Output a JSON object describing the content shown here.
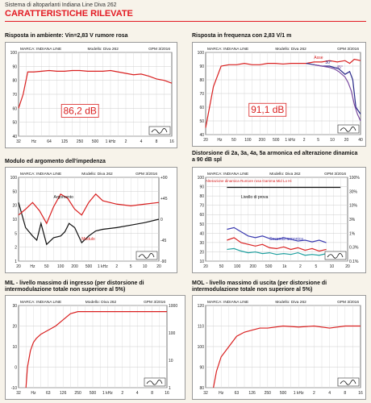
{
  "header": {
    "subtitle": "Sistema di altoparlanti Indiana Line Diva 262",
    "title": "CARATTERISTICHE RILEVATE"
  },
  "sections": {
    "ambient": {
      "title": "Risposta in ambiente: Vin=2,83 V rumore rosa"
    },
    "freq": {
      "title": "Risposta in frequenza con 2,83 V/1 m"
    },
    "impedance": {
      "title": "Modulo ed argomento dell'impedenza"
    },
    "distortion": {
      "title": "Distorsione di 2a, 3a, 4a, 5a armonica ed alterazione dinamica a 90 dB spl"
    },
    "mil": {
      "title": "MIL - livello massimo di ingresso (per distorsione di intermodulazione totale non superiore al 5%)"
    },
    "mol": {
      "title": "MOL - livello massimo di uscita (per distorsione di intermodulazione totale non superiore al 5%)"
    }
  },
  "chart_data": [
    {
      "id": "ambient",
      "type": "line",
      "header_left": "MARCA: INDIANA LINE",
      "header_mid": "Modello: Diva 262",
      "header_right": "GPM 3/2016",
      "annotation": "86,2 dB",
      "ylim": [
        40,
        100
      ],
      "yticks": [
        "100",
        "90",
        "80",
        "70",
        "60",
        "50",
        "40"
      ],
      "xticks": [
        "32",
        "Hz",
        "64",
        "125",
        "250",
        "500",
        "1 kHz",
        "2",
        "4",
        "8",
        "16"
      ],
      "series": [
        {
          "color": "#d92020",
          "x": [
            0,
            0.3,
            0.6,
            1,
            1.5,
            2,
            2.5,
            3,
            3.5,
            4,
            4.5,
            5,
            5.5,
            6,
            6.5,
            7,
            7.5,
            8,
            8.5,
            9,
            9.5,
            10
          ],
          "y": [
            60,
            70,
            86,
            86,
            86.5,
            87,
            86.5,
            86.5,
            87,
            87,
            86.5,
            86.5,
            86.5,
            87,
            86,
            85,
            84,
            84.5,
            83,
            81,
            80,
            78
          ]
        }
      ]
    },
    {
      "id": "freq",
      "type": "line",
      "header_left": "MARCA: INDIANA LINE",
      "header_mid": "Modello: Diva 262",
      "header_right": "GPM 3/2016",
      "annotation": "91,1 dB",
      "legend": [
        "Asse",
        "30°",
        "45°"
      ],
      "ylim": [
        40,
        100
      ],
      "yticks": [
        "100",
        "90",
        "80",
        "70",
        "60",
        "50",
        "40"
      ],
      "xticks": [
        "20",
        "Hz",
        "50",
        "100",
        "200",
        "500",
        "1 kHz",
        "2",
        "5",
        "10",
        "20",
        "40"
      ],
      "series": [
        {
          "color": "#d92020",
          "x": [
            0,
            0.5,
            1,
            1.5,
            2,
            2.5,
            3,
            3.5,
            4,
            4.5,
            5,
            5.5,
            6,
            6.5,
            7,
            7.5,
            8,
            8.5,
            9,
            9.3,
            9.6,
            10
          ],
          "y": [
            45,
            75,
            90,
            91,
            91,
            92,
            91,
            91,
            92,
            92,
            91.5,
            92,
            92,
            92,
            93,
            93,
            94,
            93,
            94,
            92,
            95,
            94
          ]
        },
        {
          "color": "#2a2a8a",
          "x": [
            6.5,
            7,
            7.5,
            8,
            8.3,
            8.6,
            9,
            9.3,
            9.5,
            9.7,
            10
          ],
          "y": [
            92,
            91,
            90,
            90,
            89,
            88,
            84,
            86,
            80,
            60,
            55
          ]
        },
        {
          "color": "#7a4aa0",
          "x": [
            7,
            7.5,
            8,
            8.3,
            8.6,
            9,
            9.2,
            9.4,
            9.6,
            9.8,
            10
          ],
          "y": [
            91,
            90,
            89,
            88,
            86,
            82,
            78,
            72,
            62,
            55,
            50
          ]
        }
      ]
    },
    {
      "id": "impedance",
      "type": "line",
      "header_left": "MARCA: INDIANA LINE",
      "header_mid": "Modello: Diva 262",
      "header_right": "GPM 3/2016",
      "labels": [
        "Argomento",
        "Modulo"
      ],
      "ylim": [
        0,
        100
      ],
      "yticks": [
        "100",
        "50",
        "20",
        "10",
        "5",
        "2",
        "1"
      ],
      "yticks_right": [
        "+90",
        "+45",
        "0",
        "-45",
        "-90"
      ],
      "xticks": [
        "20",
        "Hz",
        "50",
        "100",
        "200",
        "500",
        "1 kHz",
        "2",
        "5",
        "10",
        "20"
      ],
      "series": [
        {
          "color": "#111111",
          "x": [
            0,
            0.5,
            1,
            1.3,
            1.6,
            2,
            2.5,
            3,
            3.3,
            3.6,
            4,
            4.5,
            5,
            5.5,
            6,
            7,
            8,
            9,
            10
          ],
          "y": [
            70,
            40,
            30,
            25,
            45,
            20,
            28,
            30,
            35,
            45,
            40,
            22,
            30,
            36,
            38,
            40,
            43,
            46,
            50
          ]
        },
        {
          "color": "#d92020",
          "x": [
            0,
            0.5,
            1,
            1.5,
            2,
            2.5,
            3,
            3.5,
            4,
            4.5,
            5,
            5.5,
            6,
            7,
            8,
            9,
            10
          ],
          "y": [
            55,
            62,
            70,
            60,
            45,
            65,
            80,
            75,
            62,
            55,
            70,
            80,
            72,
            68,
            66,
            68,
            70
          ]
        }
      ]
    },
    {
      "id": "distortion",
      "type": "line",
      "header_left": "MARCA: INDIANA LINE",
      "header_mid": "Modello: Diva 262",
      "header_right": "GPM 3/2016",
      "top_legend": "Alterazione dinamica   Rumore rosa  Gamma Mid Lo Hi",
      "labels": [
        "Livello di prova",
        "Seconda armonica",
        "Terza armonica"
      ],
      "ylim": [
        0,
        100
      ],
      "yticks": [
        "100",
        "90",
        "80",
        "70",
        "60",
        "50",
        "40",
        "30",
        "20",
        "10"
      ],
      "yticks_right": [
        "100%",
        "30%",
        "10%",
        "3%",
        "1%",
        "0.3%",
        "0.1%"
      ],
      "xticks": [
        "20",
        "50",
        "100",
        "200",
        "500",
        "1k",
        "2",
        "5",
        "10",
        "20"
      ],
      "series": [
        {
          "color": "#111111",
          "x": [
            1.5,
            2,
            3,
            4,
            5,
            6,
            7,
            8,
            9,
            9.5
          ],
          "y": [
            88,
            88,
            88,
            88,
            88,
            88,
            88,
            88,
            88,
            88
          ]
        },
        {
          "color": "#3a3ab0",
          "x": [
            1.5,
            2,
            2.5,
            3,
            3.5,
            4,
            4.5,
            5,
            5.5,
            6,
            6.5,
            7,
            7.5,
            8,
            8.5
          ],
          "y": [
            38,
            40,
            35,
            30,
            28,
            30,
            27,
            26,
            28,
            26,
            24,
            25,
            23,
            25,
            22
          ]
        },
        {
          "color": "#d92020",
          "x": [
            1.5,
            2,
            2.5,
            3,
            3.5,
            4,
            4.5,
            5,
            5.5,
            6,
            6.5,
            7,
            7.5,
            8,
            8.5
          ],
          "y": [
            25,
            28,
            22,
            20,
            18,
            20,
            16,
            15,
            17,
            14,
            16,
            13,
            15,
            12,
            14
          ]
        },
        {
          "color": "#20a0a0",
          "x": [
            1.5,
            2,
            2.5,
            3,
            3.5,
            4,
            4.5,
            5,
            5.5,
            6,
            6.5,
            7,
            7.5,
            8,
            8.5
          ],
          "y": [
            14,
            15,
            12,
            10,
            11,
            9,
            10,
            8,
            9,
            8,
            10,
            7,
            8,
            7,
            9
          ]
        }
      ]
    },
    {
      "id": "mil",
      "type": "line",
      "header_left": "MARCA: INDIANA LINE",
      "header_mid": "Modello: Diva 262",
      "header_right": "GPM 3/2016",
      "ylim": [
        -10,
        30
      ],
      "yticks": [
        "30",
        "20",
        "10",
        "0",
        "-10"
      ],
      "yticks_right": [
        "1000",
        "100",
        "10",
        "1"
      ],
      "xticks": [
        "32",
        "Hz",
        "63",
        "126",
        "250",
        "500",
        "1 kHz",
        "2",
        "4",
        "8",
        "16"
      ],
      "series": [
        {
          "color": "#d92020",
          "x": [
            0.5,
            0.6,
            0.8,
            1.0,
            1.2,
            1.5,
            2,
            2.5,
            3,
            3.5,
            4,
            10
          ],
          "y": [
            -10,
            0,
            8,
            12,
            14,
            16,
            18,
            20,
            23,
            26,
            27,
            27
          ]
        }
      ]
    },
    {
      "id": "mol",
      "type": "line",
      "header_left": "MARCA: INDIANA LINE",
      "header_mid": "Modello: Diva 262",
      "header_right": "GPM 3/2016",
      "ylim": [
        80,
        120
      ],
      "yticks": [
        "120",
        "110",
        "100",
        "90",
        "80"
      ],
      "xticks": [
        "32",
        "Hz",
        "63",
        "126",
        "250",
        "500",
        "1 kHz",
        "2",
        "4",
        "8",
        "16"
      ],
      "series": [
        {
          "color": "#d92020",
          "x": [
            0.5,
            0.7,
            1,
            1.5,
            2,
            2.5,
            3,
            3.5,
            4,
            5,
            6,
            7,
            8,
            9,
            10
          ],
          "y": [
            80,
            88,
            95,
            100,
            105,
            107,
            108,
            109,
            109,
            110,
            109.5,
            110,
            109,
            110,
            110
          ]
        }
      ]
    }
  ]
}
